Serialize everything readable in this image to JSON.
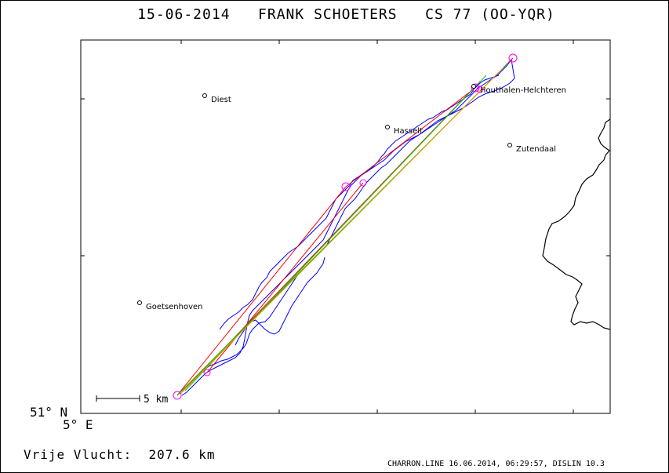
{
  "title": {
    "date": "15-06-2014",
    "pilot": "FRANK SCHOETERS",
    "glider": "CS 77 (OO-YQR)"
  },
  "axes": {
    "lat_label": "51° N",
    "lon_label": "5° E"
  },
  "scale_bar": {
    "label": "5 km"
  },
  "summary": {
    "label": "Vrije Vlucht:",
    "distance": "207.6 km"
  },
  "footer": "CHARRON.LINE 16.06.2014, 06:29:57, DISLIN 10.3",
  "places": [
    {
      "name": "Diest"
    },
    {
      "name": "Hasselt"
    },
    {
      "name": "Houthalen-Helchteren"
    },
    {
      "name": "Zutendaal"
    },
    {
      "name": "Goetsenhoven"
    }
  ],
  "colors": {
    "track": "#0000ff",
    "legs_red": "#ff0000",
    "legs_green": "#00cc00",
    "legs_orange": "#ff9900",
    "turnpoint": "#ff00ff",
    "border": "#000000"
  }
}
